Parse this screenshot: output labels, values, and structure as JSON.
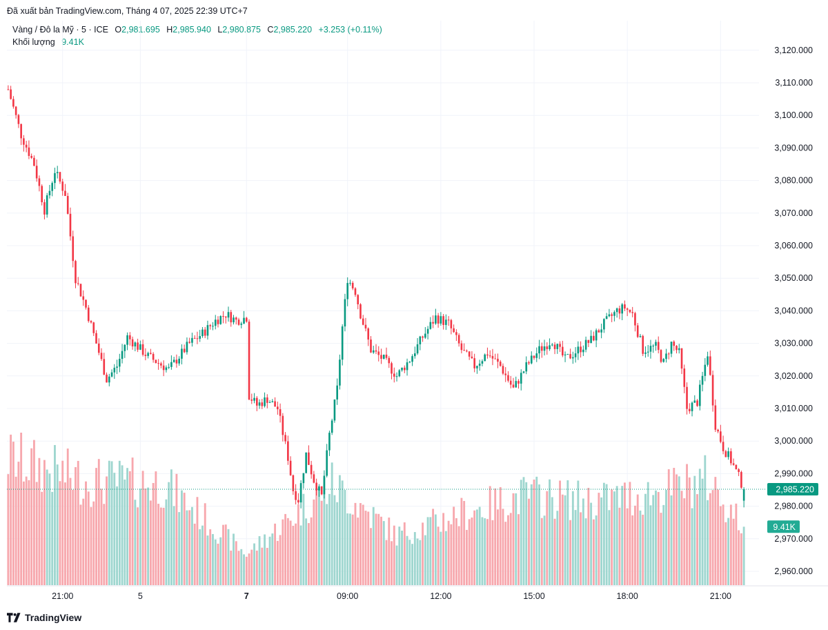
{
  "header": {
    "published": "Đã xuất bản TradingView.com, Tháng 4 07, 2025 22:39 UTC+7"
  },
  "legend": {
    "symbol": "Vàng / Đô la Mỹ · 5 · ICE",
    "o_label": "O",
    "o_value": "2,981.695",
    "h_label": "H",
    "h_value": "2,985.940",
    "l_label": "L",
    "l_value": "2,980.875",
    "c_label": "C",
    "c_value": "2,985.220",
    "change": "+3.253 (+0.11%)",
    "volume_label": "Khối lượng",
    "volume_value": "9.41K"
  },
  "price_tag": "2,985.220",
  "volume_tag": "9.41K",
  "brand": {
    "name": "TradingView",
    "icon": "tradingview-logo-icon"
  },
  "colors": {
    "up": "#089981",
    "down": "#f23645",
    "up_vol": "#9ed6cf",
    "down_vol": "#f7a7ad",
    "grid": "#f0f3fa"
  },
  "chart_data": {
    "type": "candlestick",
    "title": "Vàng / Đô la Mỹ · 5 · ICE",
    "ylim": [
      2955,
      3128
    ],
    "y_ticks": [
      "2,960.000",
      "2,970.000",
      "2,980.000",
      "2,990.000",
      "3,000.000",
      "3,010.000",
      "3,020.000",
      "3,030.000",
      "3,040.000",
      "3,050.000",
      "3,060.000",
      "3,070.000",
      "3,080.000",
      "3,090.000",
      "3,100.000",
      "3,110.000",
      "3,120.000"
    ],
    "y_tick_values": [
      2960,
      2970,
      2980,
      2990,
      3000,
      3010,
      3020,
      3030,
      3040,
      3050,
      3060,
      3070,
      3080,
      3090,
      3100,
      3110,
      3120
    ],
    "x_ticks": [
      {
        "label": "21:00",
        "bold": false,
        "index": 21
      },
      {
        "label": "5",
        "bold": false,
        "index": 51
      },
      {
        "label": "7",
        "bold": true,
        "index": 92
      },
      {
        "label": "09:00",
        "bold": false,
        "index": 131
      },
      {
        "label": "12:00",
        "bold": false,
        "index": 167
      },
      {
        "label": "15:00",
        "bold": false,
        "index": 203
      },
      {
        "label": "18:00",
        "bold": false,
        "index": 239
      },
      {
        "label": "21:00",
        "bold": false,
        "index": 275
      }
    ],
    "path": [
      [
        0,
        3108
      ],
      [
        5,
        3094
      ],
      [
        10,
        3085
      ],
      [
        14,
        3071
      ],
      [
        18,
        3083
      ],
      [
        22,
        3076
      ],
      [
        26,
        3050
      ],
      [
        30,
        3041
      ],
      [
        34,
        3030
      ],
      [
        38,
        3019
      ],
      [
        42,
        3023
      ],
      [
        46,
        3032
      ],
      [
        50,
        3029
      ],
      [
        54,
        3026
      ],
      [
        58,
        3024
      ],
      [
        62,
        3022
      ],
      [
        66,
        3026
      ],
      [
        70,
        3030
      ],
      [
        75,
        3033
      ],
      [
        80,
        3037
      ],
      [
        84,
        3039
      ],
      [
        88,
        3037
      ],
      [
        92,
        3038
      ],
      [
        93,
        3014
      ],
      [
        96,
        3011
      ],
      [
        100,
        3013
      ],
      [
        104,
        3010
      ],
      [
        108,
        2995
      ],
      [
        110,
        2985
      ],
      [
        112,
        2982
      ],
      [
        115,
        2996
      ],
      [
        118,
        2988
      ],
      [
        121,
        2983
      ],
      [
        124,
        3002
      ],
      [
        127,
        3016
      ],
      [
        129,
        3035
      ],
      [
        131,
        3050
      ],
      [
        134,
        3046
      ],
      [
        136,
        3039
      ],
      [
        140,
        3028
      ],
      [
        145,
        3025
      ],
      [
        150,
        3020
      ],
      [
        155,
        3025
      ],
      [
        160,
        3032
      ],
      [
        165,
        3038
      ],
      [
        170,
        3036
      ],
      [
        175,
        3028
      ],
      [
        180,
        3023
      ],
      [
        185,
        3027
      ],
      [
        190,
        3023
      ],
      [
        195,
        3016
      ],
      [
        200,
        3023
      ],
      [
        205,
        3028
      ],
      [
        210,
        3031
      ],
      [
        215,
        3025
      ],
      [
        220,
        3028
      ],
      [
        225,
        3031
      ],
      [
        230,
        3036
      ],
      [
        235,
        3040
      ],
      [
        238,
        3041
      ],
      [
        241,
        3039
      ],
      [
        245,
        3028
      ],
      [
        250,
        3029
      ],
      [
        253,
        3024
      ],
      [
        256,
        3030
      ],
      [
        259,
        3027
      ],
      [
        262,
        3010
      ],
      [
        266,
        3012
      ],
      [
        270,
        3027
      ],
      [
        273,
        3005
      ],
      [
        276,
        2998
      ],
      [
        279,
        2994
      ],
      [
        282,
        2989
      ],
      [
        284,
        2985.2
      ]
    ],
    "volume_level": [
      [
        "0",
        "20.5"
      ],
      [
        "30",
        "16.8"
      ],
      [
        "60",
        "16.3"
      ],
      [
        "92",
        "5"
      ],
      [
        "110",
        "11"
      ],
      [
        "125",
        "16.3"
      ],
      [
        "150",
        "8"
      ],
      [
        "175",
        "11.5"
      ],
      [
        "200",
        "14.5"
      ],
      [
        "225",
        "13.5"
      ],
      [
        "250",
        "14.8"
      ],
      [
        "270",
        "17"
      ],
      [
        "284",
        "9.41"
      ]
    ],
    "last_close": 2985.22,
    "last_volume_k": 9.41
  }
}
